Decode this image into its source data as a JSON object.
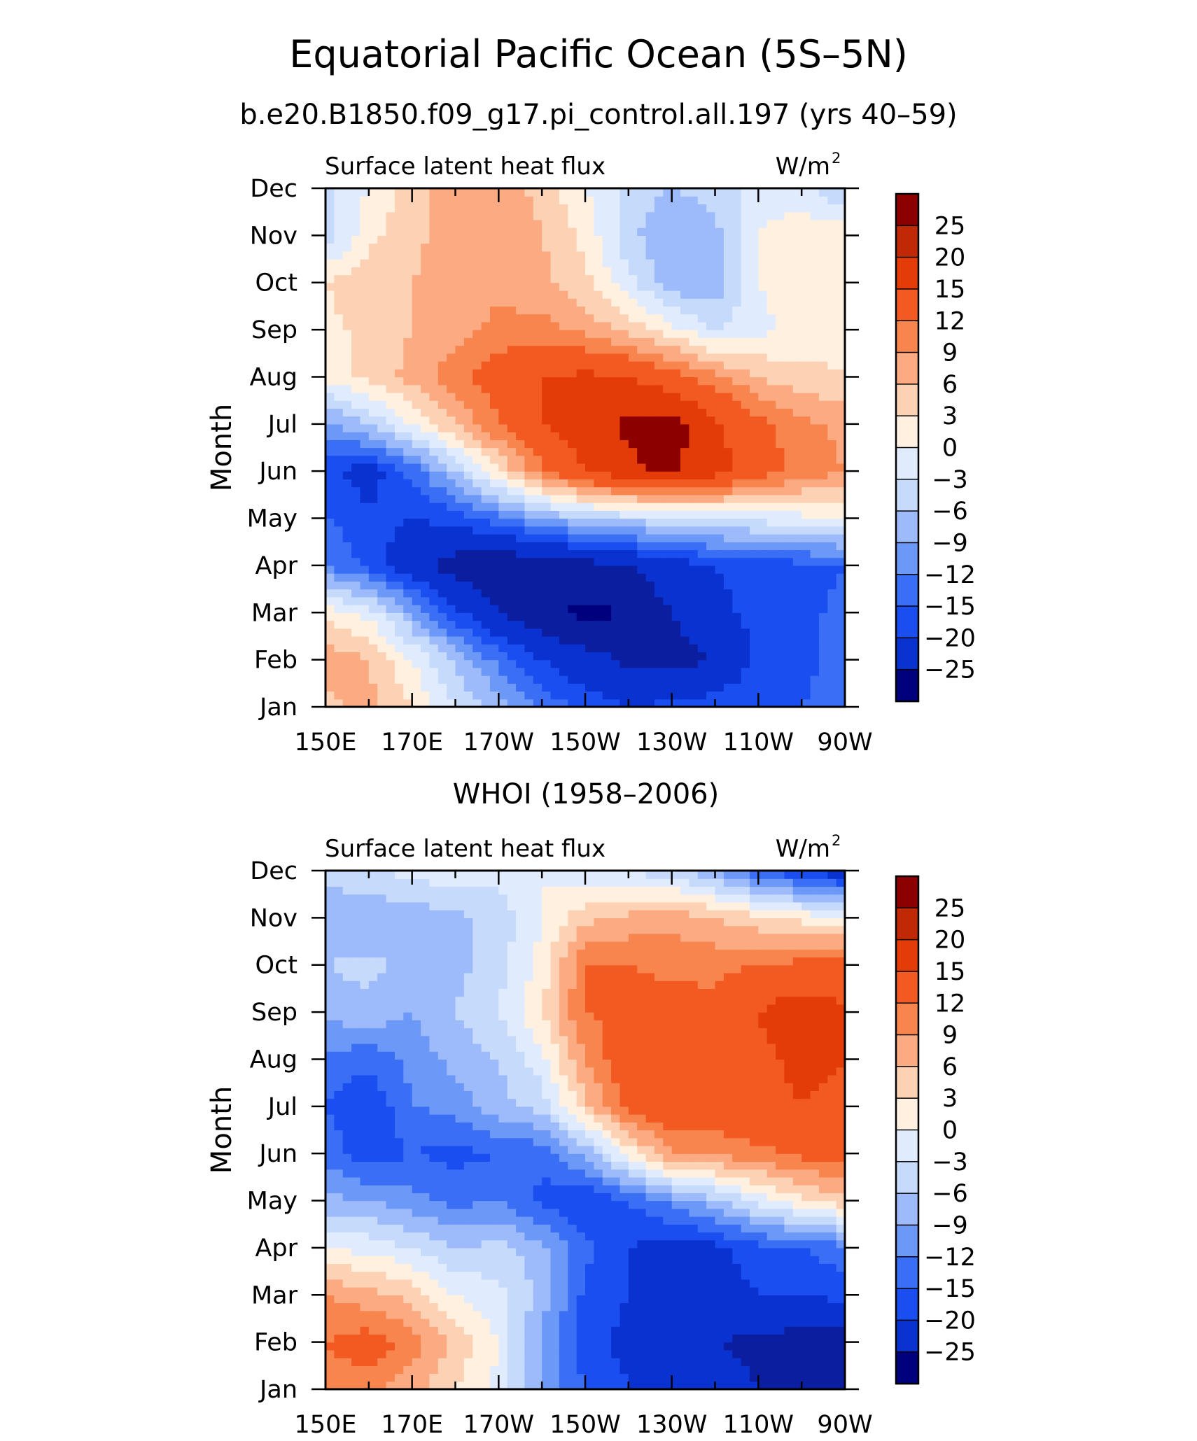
{
  "title": "Equatorial Pacific Ocean (5S–5N)",
  "subtitle": "b.e20.B1850.f09_g17.pi_control.all.197 (yrs 40–59)",
  "chart_data": [
    {
      "type": "heatmap",
      "panel_label": "",
      "variable_label": "Surface latent heat flux",
      "units_label": "W/m",
      "units_power": "2",
      "ylabel": "Month",
      "xlabel": "",
      "x_ticks": [
        "150E",
        "170E",
        "170W",
        "150W",
        "130W",
        "110W",
        "90W"
      ],
      "x_range": [
        150,
        270
      ],
      "y_ticks": [
        "Jan",
        "Feb",
        "Mar",
        "Apr",
        "May",
        "Jun",
        "Jul",
        "Aug",
        "Sep",
        "Oct",
        "Nov",
        "Dec"
      ],
      "colorbar_labels": [
        "25",
        "20",
        "15",
        "12",
        "9",
        "6",
        "3",
        "0",
        "−3",
        "−6",
        "−9",
        "−12",
        "−15",
        "−20",
        "−25"
      ],
      "grid": false,
      "legend": "right",
      "x": [
        150,
        160,
        170,
        180,
        190,
        200,
        210,
        220,
        230,
        240,
        250,
        260,
        270
      ],
      "values": [
        [
          8,
          10,
          6,
          0,
          -4,
          -10,
          -13,
          -15,
          -14,
          -13,
          -12,
          -12,
          -10
        ],
        [
          11,
          9,
          3,
          -4,
          -10,
          -15,
          -18,
          -21,
          -22,
          -20,
          -14,
          -13,
          -11
        ],
        [
          5,
          2,
          -6,
          -14,
          -20,
          -24,
          -26,
          -25,
          -20,
          -16,
          -14,
          -13,
          -11
        ],
        [
          -9,
          -13,
          -18,
          -22,
          -24,
          -24,
          -22,
          -20,
          -17,
          -15,
          -14,
          -13,
          -12
        ],
        [
          -12,
          -14,
          -15,
          -14,
          -10,
          -6,
          -3,
          -2,
          -1,
          0,
          1,
          2,
          3
        ],
        [
          -14,
          -17,
          -11,
          -3,
          6,
          14,
          20,
          24,
          26,
          22,
          17,
          14,
          12
        ],
        [
          -7,
          -3,
          3,
          9,
          15,
          20,
          23,
          26,
          27,
          21,
          16,
          13,
          11
        ],
        [
          4,
          7,
          10,
          14,
          17,
          20,
          21,
          20,
          17,
          13,
          9,
          7,
          6
        ],
        [
          5,
          7,
          9,
          11,
          13,
          13,
          11,
          8,
          4,
          0,
          2,
          4,
          5
        ],
        [
          6,
          8,
          9,
          10,
          11,
          10,
          7,
          1,
          -5,
          -5,
          3,
          5,
          5
        ],
        [
          -2,
          5,
          8,
          11,
          12,
          9,
          5,
          -2,
          -6,
          -4,
          3,
          5,
          5
        ],
        [
          -1,
          3,
          8,
          10,
          11,
          8,
          3,
          -1,
          -3,
          -2,
          2,
          1,
          -3
        ]
      ]
    },
    {
      "type": "heatmap",
      "panel_label": "WHOI (1958–2006)",
      "variable_label": "Surface latent heat flux",
      "units_label": "W/m",
      "units_power": "2",
      "ylabel": "Month",
      "xlabel": "",
      "x_ticks": [
        "150E",
        "170E",
        "170W",
        "150W",
        "130W",
        "110W",
        "90W"
      ],
      "x_range": [
        150,
        270
      ],
      "y_ticks": [
        "Jan",
        "Feb",
        "Mar",
        "Apr",
        "May",
        "Jun",
        "Jul",
        "Aug",
        "Sep",
        "Oct",
        "Nov",
        "Dec"
      ],
      "colorbar_labels": [
        "25",
        "20",
        "15",
        "12",
        "9",
        "6",
        "3",
        "0",
        "−3",
        "−6",
        "−9",
        "−12",
        "−15",
        "−20",
        "−25"
      ],
      "grid": false,
      "legend": "right",
      "x": [
        150,
        160,
        170,
        180,
        190,
        200,
        210,
        220,
        230,
        240,
        250,
        260,
        270
      ],
      "values": [
        [
          14,
          13,
          10,
          6,
          2,
          -6,
          -12,
          -15,
          -16,
          -18,
          -20,
          -22,
          -24
        ],
        [
          15,
          17,
          14,
          8,
          3,
          -7,
          -14,
          -16,
          -18,
          -20,
          -21,
          -22,
          -22
        ],
        [
          12,
          10,
          8,
          3,
          1,
          -4,
          -13,
          -15,
          -16,
          -17,
          -15,
          -15,
          -14
        ],
        [
          3,
          2,
          0,
          -3,
          -2,
          -5,
          -11,
          -15,
          -17,
          -16,
          -13,
          -12,
          -10
        ],
        [
          -5,
          -6,
          -8,
          -10,
          -9,
          -13,
          -15,
          -12,
          -8,
          -4,
          1,
          5,
          8
        ],
        [
          -10,
          -14,
          -12,
          -13,
          -12,
          -11,
          -5,
          4,
          12,
          13,
          14,
          16,
          17
        ],
        [
          -12,
          -15,
          -9,
          -8,
          -4,
          -2,
          8,
          16,
          19,
          17,
          19,
          20,
          19
        ],
        [
          -10,
          -11,
          -8,
          -5,
          -3,
          2,
          12,
          18,
          19,
          16,
          19,
          21,
          20
        ],
        [
          -5,
          -4,
          -6,
          -3,
          0,
          6,
          15,
          16,
          17,
          16,
          20,
          23,
          21
        ],
        [
          -3,
          -2,
          -4,
          -4,
          -1,
          4,
          15,
          15,
          14,
          14,
          15,
          16,
          16
        ],
        [
          -5,
          -6,
          -5,
          -4,
          -2,
          3,
          8,
          10,
          11,
          9,
          7,
          5,
          4
        ],
        [
          -2,
          0,
          1,
          2,
          1,
          3,
          1,
          0,
          -2,
          -6,
          -11,
          -15,
          -18
        ]
      ]
    }
  ]
}
